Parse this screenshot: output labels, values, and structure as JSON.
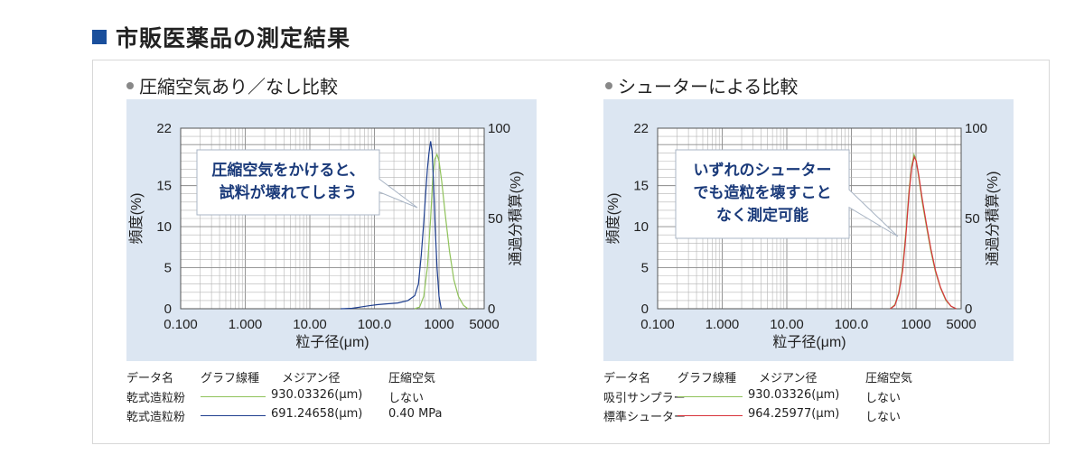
{
  "heading": "市販医薬品の測定結果",
  "chart_data": [
    {
      "type": "line",
      "title": "圧縮空気あり／なし比較",
      "xlabel": "粒子径(μm)",
      "ylabel": "頻度(%)",
      "y2label": "通過分積算(%)",
      "xscale": "log",
      "xlim": [
        0.1,
        5000
      ],
      "ylim": [
        0,
        22
      ],
      "y2lim": [
        0,
        100
      ],
      "x_ticks": [
        "0.100",
        "1.000",
        "10.00",
        "100.0",
        "1000",
        "5000"
      ],
      "y_ticks": [
        "0",
        "5",
        "10",
        "15",
        "22"
      ],
      "y2_ticks": [
        "0",
        "50",
        "100"
      ],
      "grid": true,
      "annotation": [
        "圧縮空気をかけると、",
        "試料が壊れてしまう"
      ],
      "series": [
        {
          "name": "乾式造粒粉",
          "color": "#8fc25a",
          "x": [
            420,
            500,
            580,
            660,
            740,
            800,
            860,
            930,
            1000,
            1100,
            1250,
            1450,
            1700,
            2000,
            2400,
            2800
          ],
          "y": [
            0,
            0.2,
            1.5,
            5.0,
            11.0,
            16.0,
            18.2,
            18.8,
            18.0,
            15.5,
            11.5,
            7.0,
            3.5,
            1.5,
            0.4,
            0
          ]
        },
        {
          "name": "乾式造粒粉",
          "color": "#1f3f8f",
          "x": [
            30,
            45,
            60,
            80,
            110,
            160,
            230,
            330,
            420,
            480,
            530,
            580,
            620,
            660,
            700,
            740,
            780,
            820,
            870,
            930,
            1000,
            1080
          ],
          "y": [
            0,
            0.05,
            0.2,
            0.35,
            0.5,
            0.6,
            0.7,
            1.0,
            1.6,
            3.0,
            6.5,
            10.5,
            14.0,
            17.0,
            19.0,
            20.4,
            19.2,
            15.5,
            10.0,
            5.0,
            1.5,
            0
          ]
        }
      ],
      "legend": {
        "headers": [
          "データ名",
          "グラフ線種",
          "メジアン径",
          "圧縮空気"
        ],
        "rows": [
          {
            "name": "乾式造粒粉",
            "color": "#8fc25a",
            "median": "930.03326(μm)",
            "air": "しない"
          },
          {
            "name": "乾式造粒粉",
            "color": "#1f3f8f",
            "median": "691.24658(μm)",
            "air": "0.40 MPa"
          }
        ]
      }
    },
    {
      "type": "line",
      "title": "シューターによる比較",
      "xlabel": "粒子径(μm)",
      "ylabel": "頻度(%)",
      "y2label": "通過分積算(%)",
      "xscale": "log",
      "xlim": [
        0.1,
        5000
      ],
      "ylim": [
        0,
        22
      ],
      "y2lim": [
        0,
        100
      ],
      "x_ticks": [
        "0.100",
        "1.000",
        "10.00",
        "100.0",
        "1000",
        "5000"
      ],
      "y_ticks": [
        "0",
        "5",
        "10",
        "15",
        "22"
      ],
      "y2_ticks": [
        "0",
        "50",
        "100"
      ],
      "grid": true,
      "annotation": [
        "いずれのシューター",
        "でも造粒を壊すこと",
        "なく測定可能"
      ],
      "series": [
        {
          "name": "吸引サンプラー",
          "color": "#8fc25a",
          "x": [
            400,
            470,
            540,
            620,
            700,
            780,
            860,
            930,
            1000,
            1100,
            1250,
            1450,
            1700,
            2000,
            2400,
            2900,
            3500,
            4200
          ],
          "y": [
            0,
            0.5,
            2.0,
            5.0,
            9.5,
            14.5,
            17.5,
            18.8,
            18.2,
            16.0,
            13.0,
            10.0,
            7.0,
            4.5,
            2.5,
            1.0,
            0.3,
            0
          ]
        },
        {
          "name": "標準シューター",
          "color": "#d8323a",
          "x": [
            400,
            470,
            540,
            620,
            700,
            780,
            860,
            940,
            1010,
            1100,
            1250,
            1450,
            1700,
            2000,
            2400,
            2900,
            3500,
            4200
          ],
          "y": [
            0,
            0.4,
            1.8,
            4.6,
            9.0,
            14.0,
            17.2,
            18.5,
            18.0,
            16.3,
            13.4,
            10.3,
            7.3,
            4.7,
            2.6,
            1.1,
            0.3,
            0
          ]
        }
      ],
      "legend": {
        "headers": [
          "データ名",
          "グラフ線種",
          "メジアン径",
          "圧縮空気"
        ],
        "rows": [
          {
            "name": "吸引サンプラー",
            "color": "#8fc25a",
            "median": "930.03326(μm)",
            "air": "しない"
          },
          {
            "name": "標準シューター",
            "color": "#d8323a",
            "median": "964.25977(μm)",
            "air": "しない"
          }
        ]
      }
    }
  ]
}
